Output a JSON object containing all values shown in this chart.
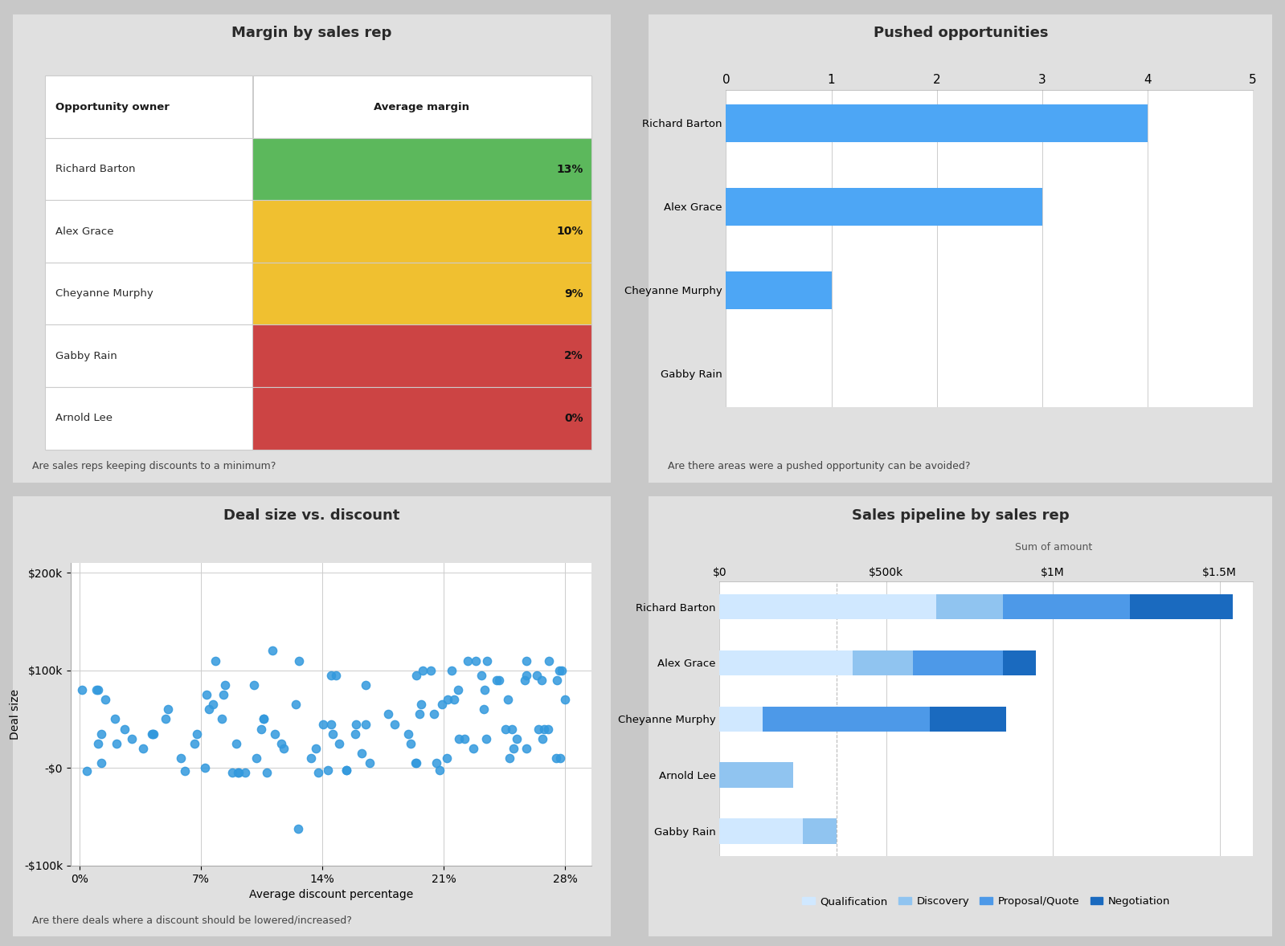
{
  "fig_bg": "#c8c8c8",
  "panel_bg": "#e0e0e0",
  "inner_bg": "#ffffff",
  "margin_title": "Margin by sales rep",
  "margin_subtitle": "Are sales reps keeping discounts to a minimum?",
  "margin_col1": "Opportunity owner",
  "margin_col2": "Average margin",
  "margin_reps": [
    "Richard Barton",
    "Alex Grace",
    "Cheyanne Murphy",
    "Gabby Rain",
    "Arnold Lee"
  ],
  "margin_values": [
    13,
    10,
    9,
    2,
    0
  ],
  "margin_colors": [
    "#5cb85c",
    "#f0c030",
    "#f0c030",
    "#cc4444",
    "#cc4444"
  ],
  "pushed_title": "Pushed opportunities",
  "pushed_subtitle": "Are there areas were a pushed opportunity can be avoided?",
  "pushed_reps": [
    "Richard Barton",
    "Alex Grace",
    "Cheyanne Murphy",
    "Gabby Rain"
  ],
  "pushed_values": [
    4,
    3,
    1,
    0
  ],
  "pushed_color": "#4da6f5",
  "scatter_title": "Deal size vs. discount",
  "scatter_subtitle": "Are there deals where a discount should be lowered/increased?",
  "scatter_xlabel": "Average discount percentage",
  "scatter_ylabel": "Deal size",
  "scatter_color": "#3399dd",
  "pipeline_title": "Sales pipeline by sales rep",
  "pipeline_subtitle_label": "Sum of amount",
  "pipeline_reps": [
    "Richard Barton",
    "Alex Grace",
    "Cheyanne Murphy",
    "Arnold Lee",
    "Gabby Rain"
  ],
  "pipeline_qualification": [
    650000,
    400000,
    130000,
    0,
    250000
  ],
  "pipeline_discovery": [
    200000,
    180000,
    0,
    220000,
    100000
  ],
  "pipeline_proposal": [
    380000,
    270000,
    500000,
    0,
    0
  ],
  "pipeline_negotiation": [
    310000,
    100000,
    230000,
    0,
    0
  ],
  "pipeline_colors": [
    "#d0e8ff",
    "#90c4f0",
    "#4d99e8",
    "#1a6abf"
  ],
  "pipeline_xlim": [
    0,
    1600000
  ],
  "pipeline_xticks": [
    0,
    500000,
    1000000,
    1500000
  ],
  "pipeline_xtick_labels": [
    "$0",
    "$500k",
    "$1M",
    "$1.5M"
  ],
  "pipeline_legend": [
    "Qualification",
    "Discovery",
    "Proposal/Quote",
    "Negotiation"
  ]
}
